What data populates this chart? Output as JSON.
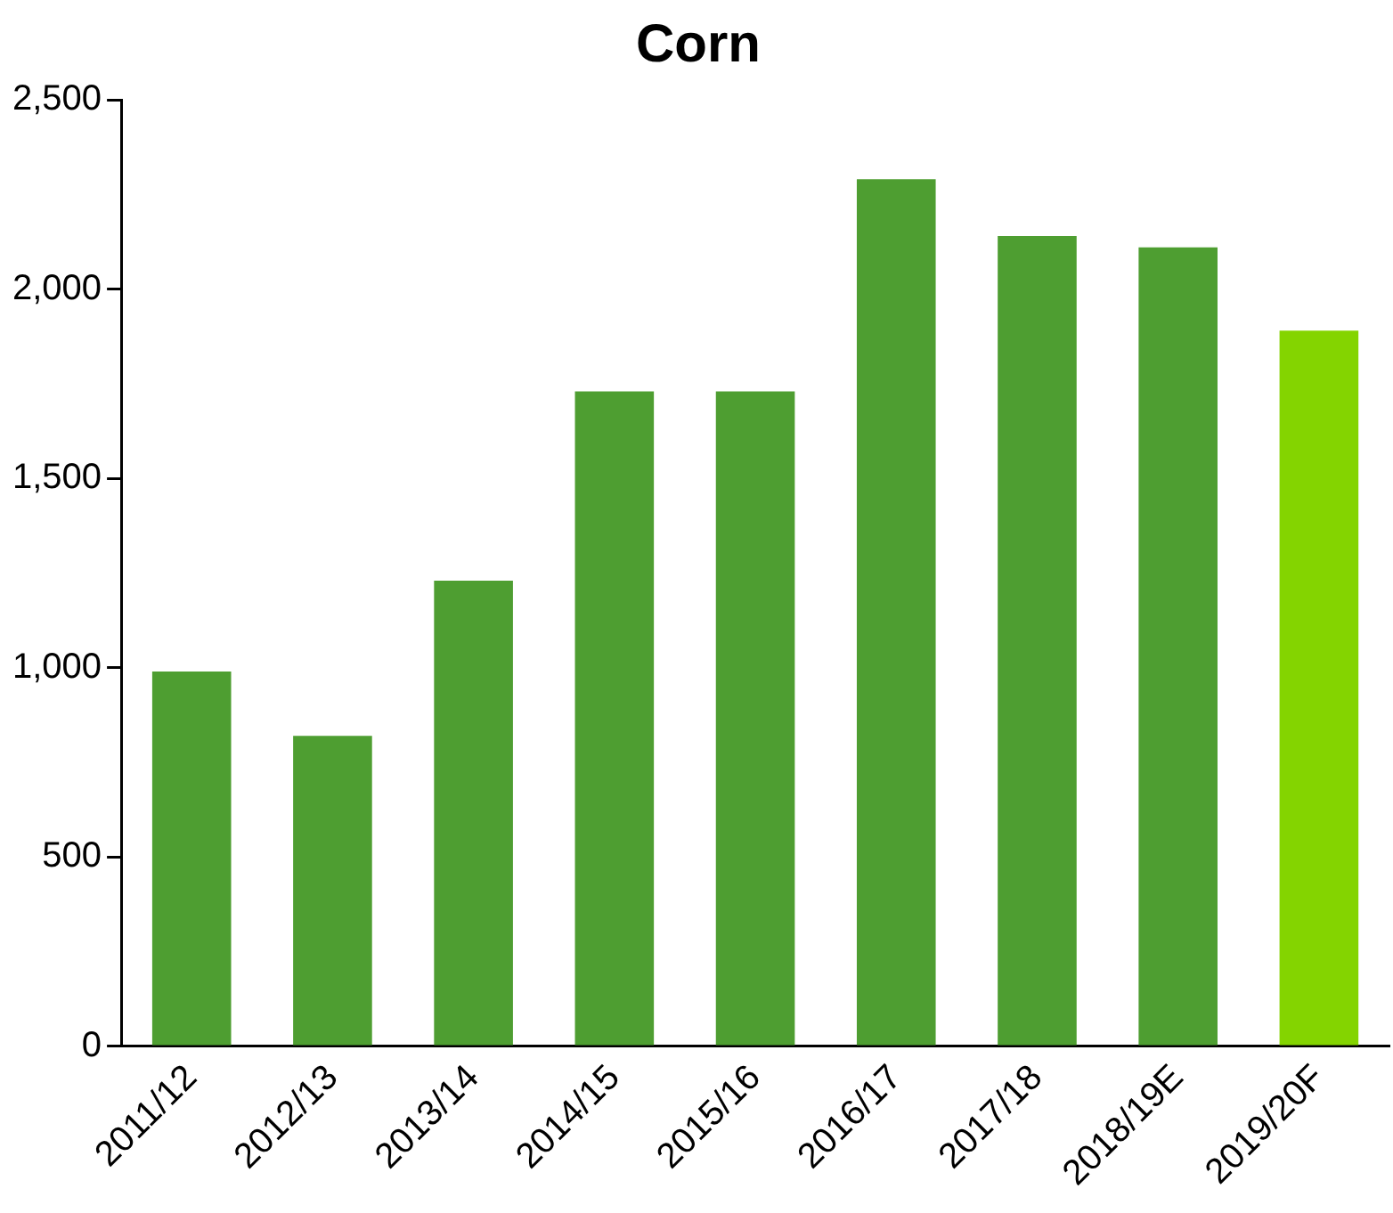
{
  "chart_data": {
    "type": "bar",
    "title": "Corn",
    "categories": [
      "2011/12",
      "2012/13",
      "2013/14",
      "2014/15",
      "2015/16",
      "2016/17",
      "2017/18",
      "2018/19E",
      "2019/20F"
    ],
    "values": [
      990,
      820,
      1230,
      1730,
      1730,
      2290,
      2140,
      2110,
      1890
    ],
    "colors": [
      "#4e9e31",
      "#4e9e31",
      "#4e9e31",
      "#4e9e31",
      "#4e9e31",
      "#4e9e31",
      "#4e9e31",
      "#4e9e31",
      "#84d400"
    ],
    "ylim": [
      0,
      2500
    ],
    "yticks": [
      0,
      500,
      {
        "value": 1000,
        "label": "1,000"
      },
      {
        "value": 1500,
        "label": "1,500"
      },
      {
        "value": 2000,
        "label": "2,000"
      },
      {
        "value": 2500,
        "label": "2,500"
      }
    ],
    "grid": false,
    "legend": false
  }
}
